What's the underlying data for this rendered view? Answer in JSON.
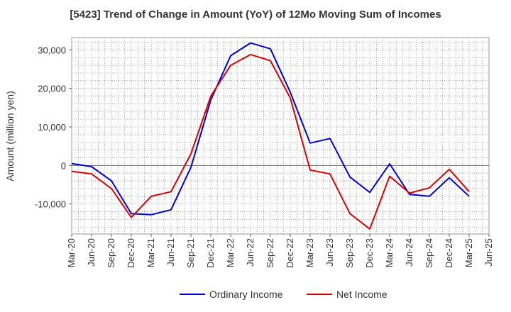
{
  "chart_data": {
    "type": "line",
    "title": "[5423]  Trend of Change in Amount (YoY) of 12Mo Moving Sum of Incomes",
    "xlabel": "",
    "ylabel": "Amount (million yen)",
    "categories": [
      "Mar-20",
      "Jun-20",
      "Sep-20",
      "Dec-20",
      "Mar-21",
      "Jun-21",
      "Sep-21",
      "Dec-21",
      "Mar-22",
      "Jun-22",
      "Sep-22",
      "Dec-22",
      "Mar-23",
      "Jun-23",
      "Sep-23",
      "Dec-23",
      "Mar-24",
      "Jun-24",
      "Sep-24",
      "Dec-24",
      "Mar-25",
      "Jun-25"
    ],
    "ylim": [
      -17800,
      33200
    ],
    "yticks": [
      -10000,
      0,
      10000,
      20000,
      30000
    ],
    "ytick_labels": [
      "-10,000",
      "0",
      "10,000",
      "20,000",
      "30,000"
    ],
    "grid": true,
    "legend_position": "bottom",
    "series": [
      {
        "name": "Ordinary Income",
        "color": "#0000dd",
        "values": [
          500,
          -300,
          -4000,
          -12500,
          -12800,
          -11500,
          -500,
          17000,
          28500,
          31800,
          30300,
          19000,
          5800,
          7000,
          -3000,
          -7000,
          400,
          -7500,
          -8000,
          -3200,
          -8000,
          null
        ]
      },
      {
        "name": "Net Income",
        "color": "#dd0000",
        "values": [
          -1500,
          -2200,
          -6000,
          -13500,
          -8000,
          -6800,
          3000,
          18000,
          26000,
          28800,
          27200,
          17500,
          -1200,
          -2200,
          -12500,
          -16500,
          -2800,
          -7200,
          -5800,
          -1000,
          -6800,
          null
        ]
      }
    ]
  }
}
